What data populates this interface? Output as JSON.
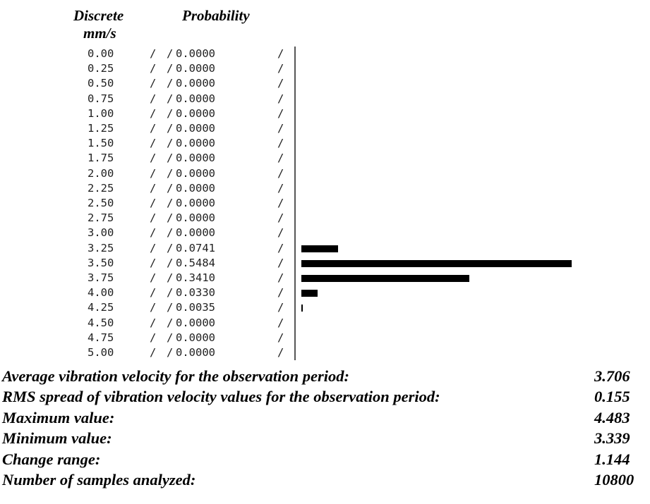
{
  "header": {
    "col1_line1": "Discrete",
    "col1_line2": "mm/s",
    "col2": "Probability"
  },
  "separator": "/",
  "chart_data": {
    "type": "bar",
    "orientation": "horizontal",
    "ylabel": "Discrete mm/s",
    "xlabel": "Probability",
    "categories": [
      "0.00",
      "0.25",
      "0.50",
      "0.75",
      "1.00",
      "1.25",
      "1.50",
      "1.75",
      "2.00",
      "2.25",
      "2.50",
      "2.75",
      "3.00",
      "3.25",
      "3.50",
      "3.75",
      "4.00",
      "4.25",
      "4.50",
      "4.75",
      "5.00"
    ],
    "value_labels": [
      "0.0000",
      "0.0000",
      "0.0000",
      "0.0000",
      "0.0000",
      "0.0000",
      "0.0000",
      "0.0000",
      "0.0000",
      "0.0000",
      "0.0000",
      "0.0000",
      "0.0000",
      "0.0741",
      "0.5484",
      "0.3410",
      "0.0330",
      "0.0035",
      "0.0000",
      "0.0000",
      "0.0000"
    ],
    "values": [
      0,
      0,
      0,
      0,
      0,
      0,
      0,
      0,
      0,
      0,
      0,
      0,
      0,
      0.0741,
      0.5484,
      0.341,
      0.033,
      0.0035,
      0,
      0,
      0
    ],
    "bar_color": "#000000"
  },
  "stats": [
    {
      "label": "Average vibration velocity for the observation period:",
      "value": "3.706"
    },
    {
      "label": "RMS spread of vibration velocity values for the observation period:",
      "value": "0.155"
    },
    {
      "label": "Maximum value:",
      "value": "4.483"
    },
    {
      "label": "Minimum value:",
      "value": "3.339"
    },
    {
      "label": "Change range:",
      "value": "1.144"
    },
    {
      "label": "Number of samples analyzed:",
      "value": "10800"
    }
  ]
}
